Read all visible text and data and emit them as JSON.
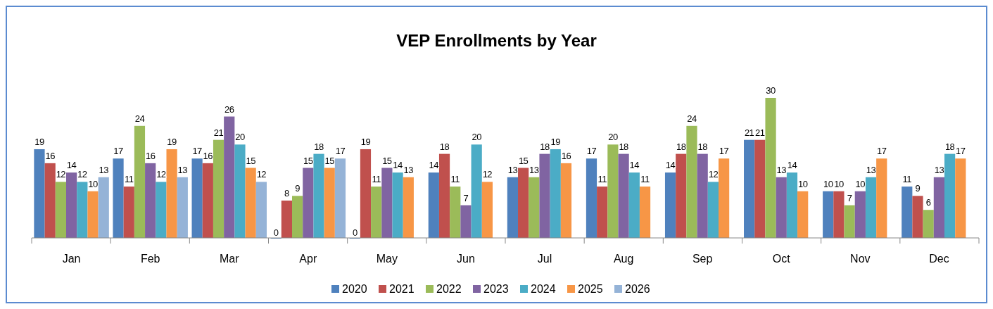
{
  "chart_data": {
    "type": "bar",
    "title": "VEP Enrollments by Year",
    "categories": [
      "Jan",
      "Feb",
      "Mar",
      "Apr",
      "May",
      "Jun",
      "Jul",
      "Aug",
      "Sep",
      "Oct",
      "Nov",
      "Dec"
    ],
    "series": [
      {
        "name": "2020",
        "color": "#4f81bd",
        "values": [
          19,
          17,
          17,
          0,
          0,
          14,
          13,
          17,
          14,
          21,
          10,
          11
        ]
      },
      {
        "name": "2021",
        "color": "#c0504d",
        "values": [
          16,
          11,
          16,
          8,
          19,
          18,
          15,
          11,
          18,
          21,
          10,
          9
        ]
      },
      {
        "name": "2022",
        "color": "#9bbb59",
        "values": [
          12,
          24,
          21,
          9,
          11,
          11,
          13,
          20,
          24,
          30,
          7,
          6
        ]
      },
      {
        "name": "2023",
        "color": "#8064a2",
        "values": [
          14,
          16,
          26,
          15,
          15,
          7,
          18,
          18,
          18,
          13,
          10,
          13
        ]
      },
      {
        "name": "2024",
        "color": "#4bacc6",
        "values": [
          12,
          12,
          20,
          18,
          14,
          20,
          19,
          14,
          12,
          14,
          13,
          18
        ]
      },
      {
        "name": "2025",
        "color": "#f79646",
        "values": [
          10,
          19,
          15,
          15,
          13,
          12,
          16,
          11,
          17,
          10,
          17,
          17
        ]
      },
      {
        "name": "2026",
        "color": "#95b3d7",
        "values": [
          13,
          13,
          12,
          17,
          null,
          null,
          null,
          null,
          null,
          null,
          null,
          null
        ]
      }
    ],
    "data_labels": true,
    "legend": "bottom"
  }
}
